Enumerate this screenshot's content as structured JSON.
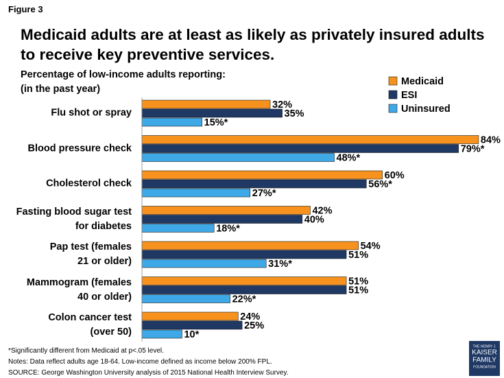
{
  "chart_data": {
    "type": "bar",
    "orientation": "horizontal",
    "figure_label": "Figure 3",
    "title": "Medicaid adults are at least as likely as privately insured adults to receive key preventive services.",
    "subtitle": "Percentage of low-income adults reporting:\n(in the past year)",
    "categories": [
      "Flu shot or spray",
      "Blood pressure check",
      "Cholesterol check",
      "Fasting blood sugar test\nfor diabetes",
      "Pap test (females\n21 or older)",
      "Mammogram (females\n40 or older)",
      "Colon cancer test\n(over 50)"
    ],
    "series": [
      {
        "name": "Medicaid",
        "color": "#f7921e",
        "values": [
          32,
          84,
          60,
          42,
          54,
          51,
          24
        ],
        "value_labels": [
          "32%",
          "84%",
          "60%",
          "42%",
          "54%",
          "51%",
          "24%"
        ]
      },
      {
        "name": "ESI",
        "color": "#1f3864",
        "values": [
          35,
          79,
          56,
          40,
          51,
          51,
          25
        ],
        "value_labels": [
          "35%",
          "79%*",
          "56%*",
          "40%",
          "51%",
          "51%",
          "25%"
        ]
      },
      {
        "name": "Uninsured",
        "color": "#3fa9e8",
        "values": [
          15,
          48,
          27,
          18,
          31,
          22,
          10
        ],
        "value_labels": [
          "15%*",
          "48%*",
          "27%*",
          "18%*",
          "31%*",
          "22%*",
          "10*"
        ]
      }
    ],
    "xlim": [
      0,
      90
    ],
    "legend": "top-right",
    "footnotes": [
      "*Significantly different from Medicaid at p<.05 level.",
      "Notes: Data reflect adults age 18-64.  Low-income defined as income below 200% FPL.",
      "SOURCE: George Washington University analysis of 2015  National Health Interview Survey."
    ],
    "logo": [
      "THE HENRY J.",
      "KAISER",
      "FAMILY",
      "FOUNDATION"
    ]
  }
}
